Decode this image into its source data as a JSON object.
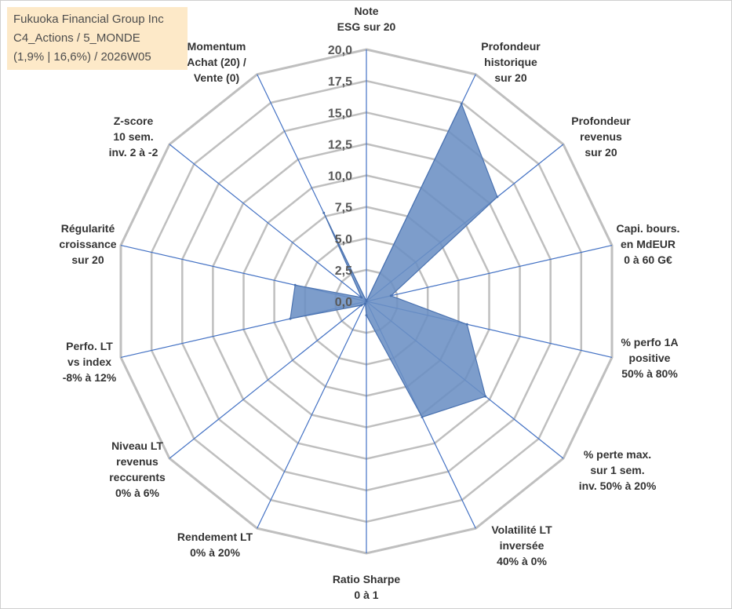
{
  "chart_data": {
    "type": "radar",
    "title_lines": [
      "Fukuoka Financial Group Inc",
      "C4_Actions / 5_MONDE",
      "(1,9% | 16,6%) / 2026W05"
    ],
    "rmin": 0,
    "rmax": 20,
    "tick_step": 2.5,
    "tick_labels": [
      "0,0",
      "2,5",
      "5,0",
      "7,5",
      "10,0",
      "12,5",
      "15,0",
      "17,5",
      "20,0"
    ],
    "grid": true,
    "categories": [
      {
        "label": [
          "Note",
          "ESG sur 20"
        ]
      },
      {
        "label": [
          "Profondeur",
          "historique",
          "sur 20"
        ]
      },
      {
        "label": [
          "Profondeur",
          "revenus",
          "sur 20"
        ]
      },
      {
        "label": [
          "Capi. bours.",
          "en MdEUR",
          "0 à 60 G€"
        ]
      },
      {
        "label": [
          "% perfo 1A",
          "positive",
          "50% à 80%"
        ]
      },
      {
        "label": [
          "% perte max.",
          "sur 1 sem.",
          "inv. 50% à 20%"
        ]
      },
      {
        "label": [
          "Volatilité LT",
          "inversée",
          "40% à 0%"
        ]
      },
      {
        "label": [
          "Ratio Sharpe",
          "0 à 1"
        ]
      },
      {
        "label": [
          "Rendement LT",
          "0% à 20%"
        ]
      },
      {
        "label": [
          "Niveau LT",
          "revenus",
          "reccurents",
          "0% à 6%"
        ]
      },
      {
        "label": [
          "Perfo. LT",
          "vs index",
          "-8% à 12%"
        ]
      },
      {
        "label": [
          "Régularité",
          "croissance",
          "sur 20"
        ]
      },
      {
        "label": [
          "Z-score",
          "10 sem.",
          "inv. 2 à -2"
        ]
      },
      {
        "label": [
          "Momentum",
          "Achat (20) /",
          "Vente (0)"
        ]
      }
    ],
    "series": [
      {
        "name": "Fukuoka Financial Group Inc",
        "values": [
          0,
          17.4,
          13.3,
          2.0,
          8.2,
          12.1,
          10.2,
          1.1,
          0.2,
          0.5,
          6.2,
          5.8,
          0.5,
          7.8
        ],
        "fill": "#6b8fc4",
        "stroke": "#4a72b0"
      }
    ],
    "colors": {
      "grid": "#bfbfbf",
      "spoke": "#4472c4",
      "label": "#333333",
      "tick": "#595959"
    }
  }
}
